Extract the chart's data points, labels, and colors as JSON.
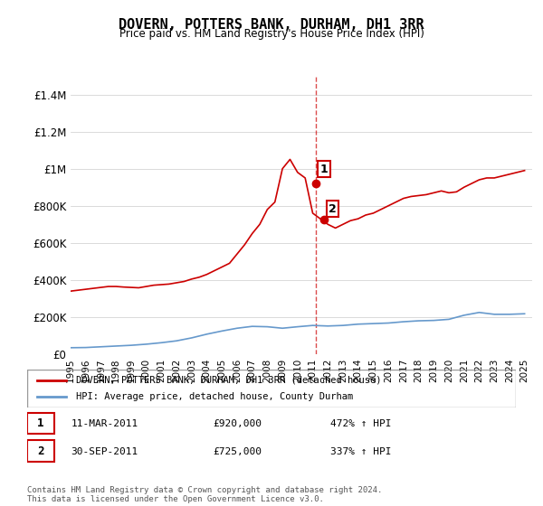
{
  "title": "DOVERN, POTTERS BANK, DURHAM, DH1 3RR",
  "subtitle": "Price paid vs. HM Land Registry's House Price Index (HPI)",
  "legend_line1": "DOVERN, POTTERS BANK, DURHAM, DH1 3RR (detached house)",
  "legend_line2": "HPI: Average price, detached house, County Durham",
  "sale1_label": "1",
  "sale1_date": "11-MAR-2011",
  "sale1_price": "£920,000",
  "sale1_hpi": "472% ↑ HPI",
  "sale2_label": "2",
  "sale2_date": "30-SEP-2011",
  "sale2_price": "£725,000",
  "sale2_hpi": "337% ↑ HPI",
  "footer": "Contains HM Land Registry data © Crown copyright and database right 2024.\nThis data is licensed under the Open Government Licence v3.0.",
  "red_color": "#cc0000",
  "blue_color": "#6699cc",
  "background_color": "#ffffff",
  "ylim": [
    0,
    1500000
  ],
  "yticks": [
    0,
    200000,
    400000,
    600000,
    800000,
    1000000,
    1200000,
    1400000
  ],
  "ytick_labels": [
    "£0",
    "£200K",
    "£400K",
    "£600K",
    "£800K",
    "£1M",
    "£1.2M",
    "£1.4M"
  ],
  "xmin": 1995.0,
  "xmax": 2025.5,
  "vline_x": 2011.2,
  "sale1_x": 2011.2,
  "sale1_y": 920000,
  "sale2_x": 2011.75,
  "sale2_y": 725000,
  "hpi_years": [
    1995,
    1996,
    1997,
    1998,
    1999,
    2000,
    2001,
    2002,
    2003,
    2004,
    2005,
    2006,
    2007,
    2008,
    2009,
    2010,
    2011,
    2012,
    2013,
    2014,
    2015,
    2016,
    2017,
    2018,
    2019,
    2020,
    2021,
    2022,
    2023,
    2024,
    2025
  ],
  "hpi_values": [
    35000,
    36000,
    40000,
    44000,
    48000,
    54000,
    62000,
    72000,
    88000,
    108000,
    125000,
    140000,
    150000,
    148000,
    140000,
    148000,
    155000,
    152000,
    155000,
    162000,
    165000,
    168000,
    175000,
    180000,
    182000,
    188000,
    210000,
    225000,
    215000,
    215000,
    218000
  ],
  "red_years": [
    1995.0,
    1995.5,
    1996.0,
    1996.5,
    1997.0,
    1997.5,
    1998.0,
    1998.5,
    1999.0,
    1999.5,
    2000.0,
    2000.5,
    2001.0,
    2001.5,
    2002.0,
    2002.5,
    2003.0,
    2003.5,
    2004.0,
    2004.5,
    2005.0,
    2005.5,
    2006.0,
    2006.5,
    2007.0,
    2007.5,
    2008.0,
    2008.5,
    2009.0,
    2009.5,
    2010.0,
    2010.5,
    2011.0,
    2012.0,
    2012.5,
    2013.0,
    2013.5,
    2014.0,
    2014.5,
    2015.0,
    2015.5,
    2016.0,
    2016.5,
    2017.0,
    2017.5,
    2018.0,
    2018.5,
    2019.0,
    2019.5,
    2020.0,
    2020.5,
    2021.0,
    2021.5,
    2022.0,
    2022.5,
    2023.0,
    2023.5,
    2024.0,
    2024.5,
    2025.0
  ],
  "red_values": [
    340000,
    345000,
    350000,
    355000,
    360000,
    365000,
    365000,
    362000,
    360000,
    358000,
    365000,
    372000,
    375000,
    378000,
    385000,
    392000,
    405000,
    415000,
    430000,
    450000,
    470000,
    490000,
    540000,
    590000,
    650000,
    700000,
    780000,
    820000,
    1000000,
    1050000,
    980000,
    950000,
    760000,
    700000,
    680000,
    700000,
    720000,
    730000,
    750000,
    760000,
    780000,
    800000,
    820000,
    840000,
    850000,
    855000,
    860000,
    870000,
    880000,
    870000,
    875000,
    900000,
    920000,
    940000,
    950000,
    950000,
    960000,
    970000,
    980000,
    990000
  ]
}
